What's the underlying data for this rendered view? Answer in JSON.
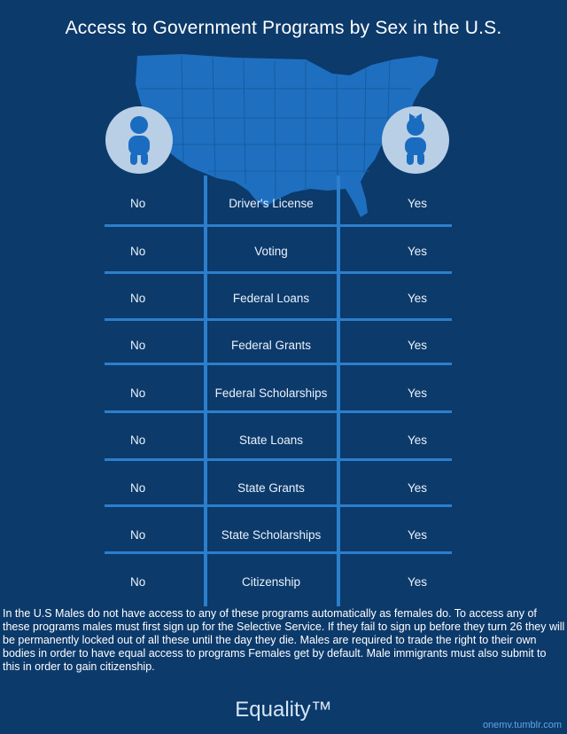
{
  "title": "Access to Government Programs by Sex in the U.S.",
  "icons": {
    "left": "male-person-icon",
    "right": "female-person-icon"
  },
  "map": "us-map",
  "rows": [
    {
      "male": "No",
      "program": "Driver's License",
      "female": "Yes"
    },
    {
      "male": "No",
      "program": "Voting",
      "female": "Yes"
    },
    {
      "male": "No",
      "program": "Federal Loans",
      "female": "Yes"
    },
    {
      "male": "No",
      "program": "Federal Grants",
      "female": "Yes"
    },
    {
      "male": "No",
      "program": "Federal Scholarships",
      "female": "Yes"
    },
    {
      "male": "No",
      "program": "State Loans",
      "female": "Yes"
    },
    {
      "male": "No",
      "program": "State Grants",
      "female": "Yes"
    },
    {
      "male": "No",
      "program": "State Scholarships",
      "female": "Yes"
    },
    {
      "male": "No",
      "program": "Citizenship",
      "female": "Yes"
    }
  ],
  "footnote": "In the U.S Males do not have access to any of these programs automatically as females do. To access any of these programs males must first sign up for the Selective Service. If they fail to sign up before they turn 26 they will be permanently locked out of all these until the day they die. Males are required to trade the right to their own bodies in order to have equal access to programs Females get by default. Male immigrants must also submit to this in order to gain citizenship.",
  "slogan": "Equality™",
  "source": "onemv.tumblr.com",
  "colors": {
    "background": "#0c3a6b",
    "lines": "#2c7fcc",
    "map": "#1e6fc0",
    "icon_bg": "#b9cfe6",
    "icon": "#1a6cc0"
  }
}
